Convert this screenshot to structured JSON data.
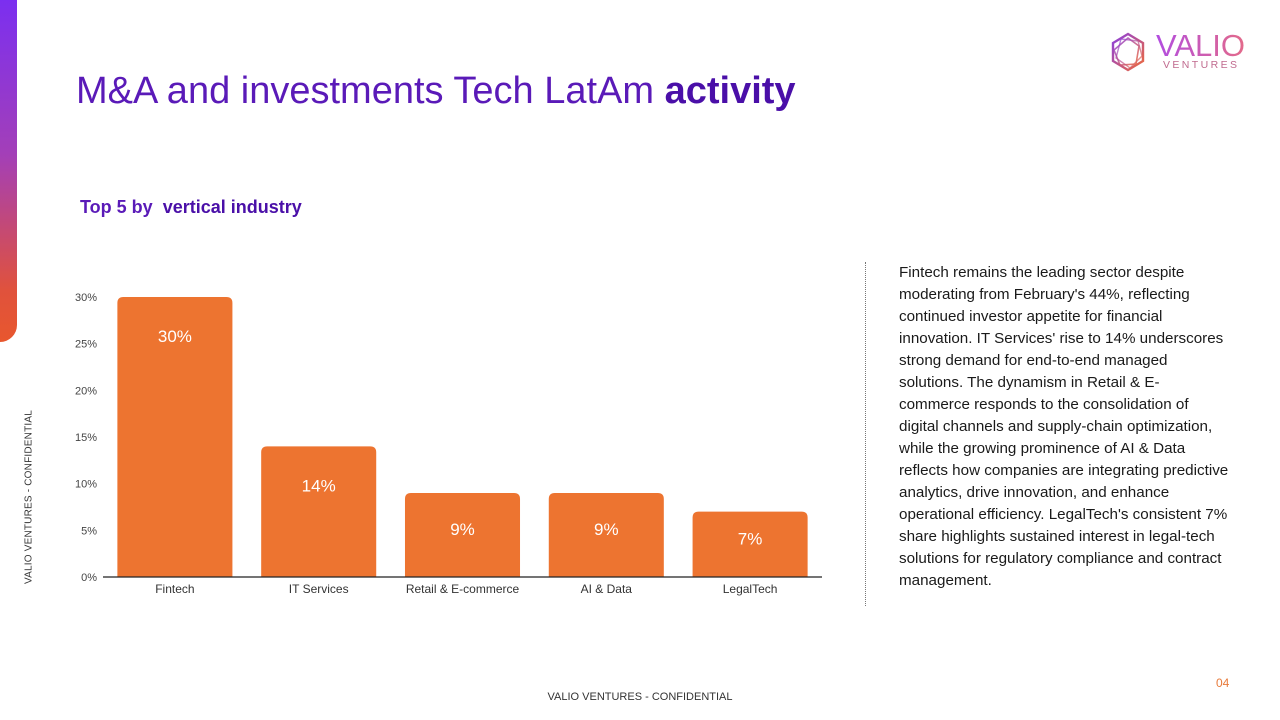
{
  "brand": {
    "logo_word": "VALIO",
    "logo_sub": "VENTURES",
    "accent_color": "#ed7430",
    "purple": "#5a1ab8"
  },
  "side_label": "VALIO VENTURES - CONFIDENTIAL",
  "title": {
    "regular": "M&A and investments Tech LatAm",
    "bold": "activity"
  },
  "subtitle": {
    "regular": "Top 5 by",
    "bold": "vertical industry"
  },
  "commentary": "Fintech remains the leading sector despite moderating from February's 44%, reflecting continued investor appetite for financial innovation. IT Services' rise to 14% underscores strong demand for end-to-end managed solutions. The dynamism in Retail & E-commerce responds to the consolidation of digital channels and supply-chain optimization, while the growing prominence of AI & Data reflects how companies are integrating predictive analytics, drive innovation, and enhance operational efficiency. LegalTech's consistent 7% share highlights sustained interest in legal-tech solutions for regulatory compliance and contract management.",
  "footer": "VALIO VENTURES - CONFIDENTIAL",
  "page_number": "04",
  "chart_data": {
    "type": "bar",
    "title": "",
    "xlabel": "",
    "ylabel": "",
    "categories": [
      "Fintech",
      "IT Services",
      "Retail & E-commerce",
      "AI & Data",
      "LegalTech"
    ],
    "values": [
      30,
      14,
      9,
      9,
      7
    ],
    "data_labels": [
      "30%",
      "14%",
      "9%",
      "9%",
      "7%"
    ],
    "ylim": [
      0,
      30
    ],
    "yticks": [
      "0%",
      "5%",
      "10%",
      "15%",
      "20%",
      "25%",
      "30%"
    ],
    "grid": false,
    "legend": "none",
    "bar_color": "#ed7430"
  }
}
